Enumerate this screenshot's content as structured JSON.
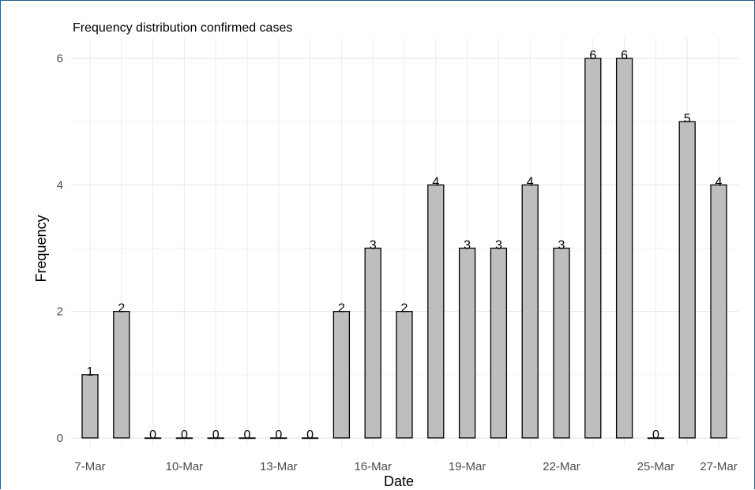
{
  "chart_data": {
    "type": "bar",
    "title": "Frequency distribution confirmed cases",
    "xlabel": "Date",
    "ylabel": "Frequency",
    "categories": [
      "7-Mar",
      "8-Mar",
      "9-Mar",
      "10-Mar",
      "11-Mar",
      "12-Mar",
      "13-Mar",
      "14-Mar",
      "15-Mar",
      "16-Mar",
      "17-Mar",
      "18-Mar",
      "19-Mar",
      "20-Mar",
      "21-Mar",
      "22-Mar",
      "23-Mar",
      "24-Mar",
      "25-Mar",
      "26-Mar",
      "27-Mar"
    ],
    "values": [
      1,
      2,
      0,
      0,
      0,
      0,
      0,
      0,
      2,
      3,
      2,
      4,
      3,
      3,
      4,
      3,
      6,
      6,
      0,
      5,
      4
    ],
    "x_tick_labels": [
      "7-Mar",
      "10-Mar",
      "13-Mar",
      "16-Mar",
      "19-Mar",
      "22-Mar",
      "25-Mar",
      "27-Mar"
    ],
    "y_ticks": [
      0,
      2,
      4,
      6
    ],
    "ylim": [
      0,
      6.3
    ],
    "grid": true,
    "bar_color": "#bebebe",
    "bar_outline": "#000000"
  }
}
